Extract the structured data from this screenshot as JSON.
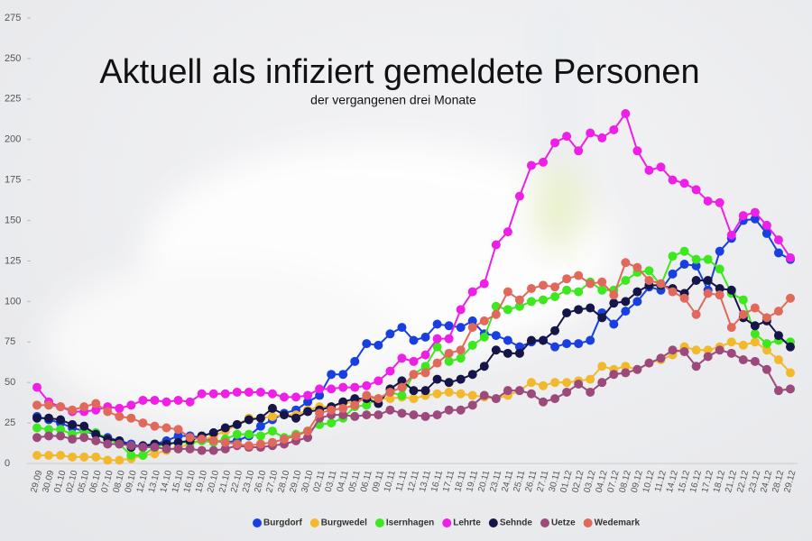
{
  "chart_data": {
    "type": "line",
    "title": "Aktuell als infiziert gemeldete Personen",
    "subtitle": "der vergangenen drei Monate",
    "categories": [
      "29.09",
      "30.09",
      "01.10",
      "02.10",
      "05.10",
      "06.10",
      "07.10",
      "08.10",
      "09.10",
      "12.10",
      "13.10",
      "14.10",
      "15.10",
      "16.10",
      "19.10",
      "20.10",
      "21.10",
      "22.10",
      "23.10",
      "26.10",
      "27.10",
      "28.10",
      "29.10",
      "30.10",
      "02.11",
      "03.11",
      "04.11",
      "05.11",
      "06.11",
      "09.11",
      "10.11",
      "11.11",
      "12.11",
      "13.11",
      "16.11",
      "17.11",
      "18.11",
      "19.11",
      "20.11",
      "23.11",
      "24.11",
      "25.11",
      "26.11",
      "27.11",
      "30.11",
      "01.12",
      "02.12",
      "03.12",
      "04.12",
      "07.12",
      "08.12",
      "09.12",
      "10.12",
      "11.12",
      "14.12",
      "15.12",
      "16.12",
      "17.12",
      "18.12",
      "21.12",
      "22.12",
      "23.12",
      "24.12",
      "28.12",
      "29.12"
    ],
    "series": [
      {
        "name": "Burgdorf",
        "color": "#1a3fe0",
        "values": [
          29,
          27,
          25,
          22,
          20,
          18,
          16,
          14,
          12,
          10,
          12,
          14,
          17,
          17,
          16,
          14,
          13,
          14,
          17,
          23,
          27,
          31,
          33,
          38,
          42,
          55,
          55,
          63,
          74,
          73,
          80,
          84,
          76,
          78,
          86,
          85,
          84,
          88,
          80,
          79,
          76,
          72,
          75,
          76,
          72,
          74,
          74,
          76,
          93,
          86,
          94,
          100,
          109,
          107,
          117,
          123,
          122,
          107,
          131,
          139,
          150,
          151,
          142,
          130,
          126
        ]
      },
      {
        "name": "Burgwedel",
        "color": "#f2b92d",
        "values": [
          5,
          5,
          5,
          4,
          4,
          4,
          2,
          2,
          3,
          5,
          6,
          8,
          10,
          12,
          14,
          17,
          20,
          24,
          28,
          28,
          29,
          30,
          30,
          33,
          35,
          35,
          37,
          38,
          40,
          40,
          40,
          41,
          40,
          42,
          43,
          44,
          43,
          42,
          41,
          40,
          42,
          45,
          50,
          48,
          50,
          50,
          51,
          52,
          60,
          58,
          60,
          58,
          62,
          64,
          67,
          72,
          70,
          70,
          72,
          75,
          73,
          75,
          70,
          64,
          56
        ]
      },
      {
        "name": "Isernhagen",
        "color": "#3de81e",
        "values": [
          22,
          21,
          21,
          18,
          20,
          19,
          15,
          12,
          5,
          5,
          10,
          12,
          13,
          13,
          14,
          13,
          15,
          18,
          18,
          17,
          20,
          16,
          18,
          20,
          24,
          25,
          28,
          35,
          36,
          40,
          44,
          42,
          55,
          60,
          72,
          63,
          65,
          73,
          78,
          97,
          95,
          97,
          100,
          101,
          103,
          107,
          106,
          112,
          107,
          107,
          113,
          118,
          119,
          110,
          128,
          131,
          126,
          126,
          120,
          105,
          101,
          80,
          74,
          76,
          75
        ]
      },
      {
        "name": "Lehrte",
        "color": "#ee1fe6",
        "values": [
          47,
          38,
          35,
          32,
          32,
          33,
          35,
          34,
          36,
          39,
          39,
          38,
          39,
          38,
          43,
          43,
          43,
          44,
          44,
          44,
          43,
          41,
          41,
          42,
          46,
          46,
          47,
          47,
          48,
          51,
          57,
          65,
          63,
          67,
          77,
          77,
          95,
          106,
          111,
          135,
          143,
          165,
          184,
          186,
          198,
          202,
          193,
          204,
          201,
          206,
          216,
          193,
          181,
          183,
          175,
          173,
          169,
          162,
          161,
          141,
          153,
          155,
          147,
          138,
          127
        ]
      },
      {
        "name": "Sehnde",
        "color": "#15154a",
        "values": [
          28,
          28,
          27,
          24,
          23,
          18,
          15,
          14,
          10,
          11,
          12,
          12,
          13,
          14,
          17,
          19,
          22,
          24,
          27,
          28,
          34,
          30,
          28,
          32,
          33,
          35,
          38,
          40,
          40,
          37,
          46,
          51,
          45,
          45,
          52,
          50,
          52,
          55,
          60,
          70,
          68,
          68,
          76,
          76,
          82,
          93,
          95,
          96,
          90,
          99,
          100,
          106,
          110,
          110,
          108,
          105,
          113,
          113,
          108,
          107,
          90,
          85,
          88,
          79,
          72
        ]
      },
      {
        "name": "Uetze",
        "color": "#9c4a7c",
        "values": [
          16,
          17,
          17,
          15,
          16,
          14,
          12,
          12,
          11,
          10,
          10,
          9,
          9,
          9,
          8,
          8,
          9,
          11,
          10,
          10,
          11,
          12,
          14,
          16,
          28,
          30,
          30,
          29,
          30,
          30,
          33,
          31,
          30,
          29,
          30,
          33,
          33,
          36,
          42,
          40,
          45,
          45,
          43,
          38,
          40,
          44,
          49,
          44,
          50,
          55,
          56,
          58,
          62,
          65,
          70,
          69,
          60,
          66,
          70,
          68,
          64,
          63,
          58,
          45,
          46
        ]
      },
      {
        "name": "Wedemark",
        "color": "#e0695c",
        "values": [
          36,
          36,
          35,
          33,
          35,
          37,
          32,
          29,
          28,
          25,
          23,
          22,
          21,
          16,
          15,
          14,
          13,
          12,
          11,
          12,
          13,
          15,
          17,
          20,
          31,
          33,
          34,
          36,
          42,
          40,
          44,
          47,
          55,
          56,
          62,
          68,
          70,
          84,
          88,
          92,
          106,
          101,
          108,
          110,
          109,
          114,
          116,
          111,
          112,
          104,
          124,
          121,
          113,
          111,
          106,
          102,
          92,
          105,
          104,
          84,
          92,
          96,
          90,
          94,
          102
        ]
      }
    ],
    "ylim": [
      0,
      275
    ],
    "yticks": [
      0,
      25,
      50,
      75,
      100,
      125,
      150,
      175,
      200,
      225,
      250,
      275
    ]
  }
}
